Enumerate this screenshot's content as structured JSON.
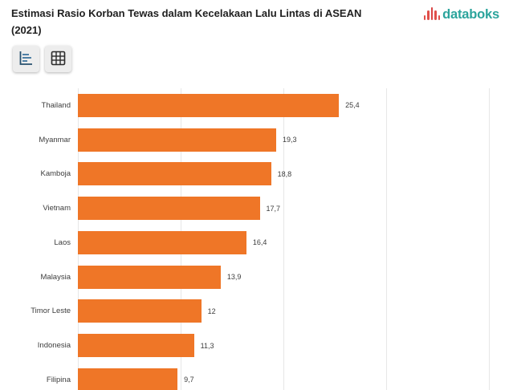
{
  "header": {
    "title_line1": "Estimasi Rasio Korban Tewas dalam Kecelakaan Lalu Lintas di ASEAN",
    "title_line2": "(2021)",
    "brand": "databoks"
  },
  "toolbar": {
    "buttons": [
      {
        "icon": "bar-chart-icon"
      },
      {
        "icon": "table-grid-icon"
      }
    ]
  },
  "colors": {
    "bar": "#ef7627",
    "brand_teal": "#2ba49c",
    "brand_red": "#e04f4a",
    "gridline": "#e7e7e7",
    "title_text": "#212121",
    "label_text": "#3d3d3d"
  },
  "chart_data": {
    "type": "bar",
    "orientation": "horizontal",
    "title": "Estimasi Rasio Korban Tewas dalam Kecelakaan Lalu Lintas di ASEAN (2021)",
    "categories": [
      "Thailand",
      "Myanmar",
      "Kamboja",
      "Vietnam",
      "Laos",
      "Malaysia",
      "Timor Leste",
      "Indonesia",
      "Filipina"
    ],
    "values": [
      25.4,
      19.3,
      18.8,
      17.7,
      16.4,
      13.9,
      12,
      11.3,
      9.7
    ],
    "value_labels": [
      "25,4",
      "19,3",
      "18,8",
      "17,7",
      "16,4",
      "13,9",
      "12",
      "11,3",
      "9,7"
    ],
    "xlabel": "",
    "ylabel": "",
    "xlim": [
      0,
      40
    ],
    "gridline_interval": 10,
    "grid": true,
    "legend": false,
    "bar_color": "#ef7627"
  }
}
